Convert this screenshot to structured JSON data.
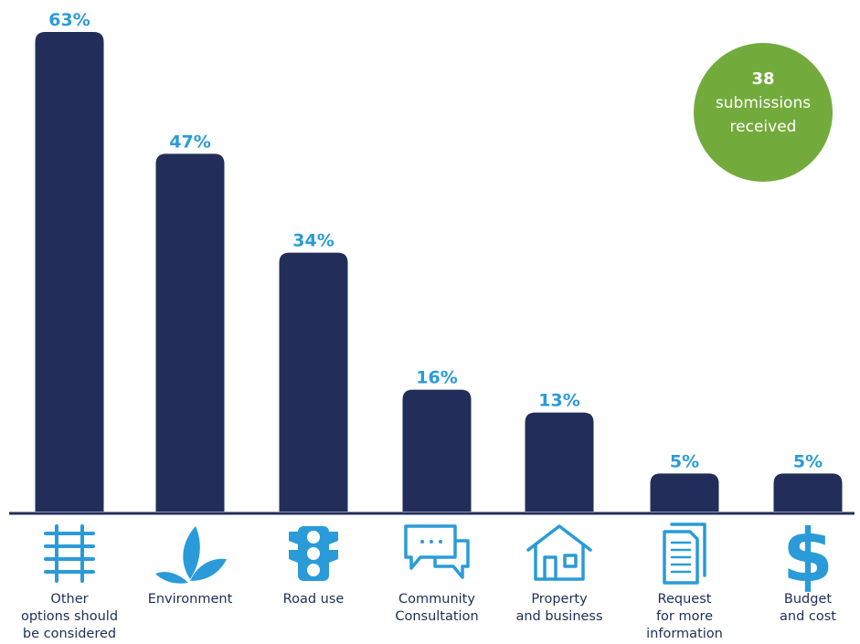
{
  "chart_data": {
    "type": "bar",
    "title": "",
    "xlabel": "",
    "ylabel": "",
    "ylim": [
      0,
      63
    ],
    "grid": false,
    "categories": [
      [
        "Other",
        "options should",
        "be considered"
      ],
      [
        "Environment"
      ],
      [
        "Road use"
      ],
      [
        "Community",
        "Consultation"
      ],
      [
        "Property",
        "and business"
      ],
      [
        "Request",
        "for more",
        "information"
      ],
      [
        "Budget",
        "and cost"
      ]
    ],
    "values": [
      63,
      47,
      34,
      16,
      13,
      5,
      5
    ],
    "value_labels": [
      "63%",
      "47%",
      "34%",
      "16%",
      "13%",
      "5%",
      "5%"
    ],
    "icons": [
      "railway-track-icon",
      "leaf-plant-icon",
      "traffic-light-icon",
      "chat-bubbles-icon",
      "house-icon",
      "document-icon",
      "dollar-sign-icon"
    ],
    "colors": {
      "bar": "#222e59",
      "value": "#2a9bd8",
      "icon": "#2a9bd8",
      "category": "#1f2d57",
      "badge": "#72ab3c"
    }
  },
  "badge": {
    "number": "38",
    "line1": "submissions",
    "line2": "received"
  }
}
